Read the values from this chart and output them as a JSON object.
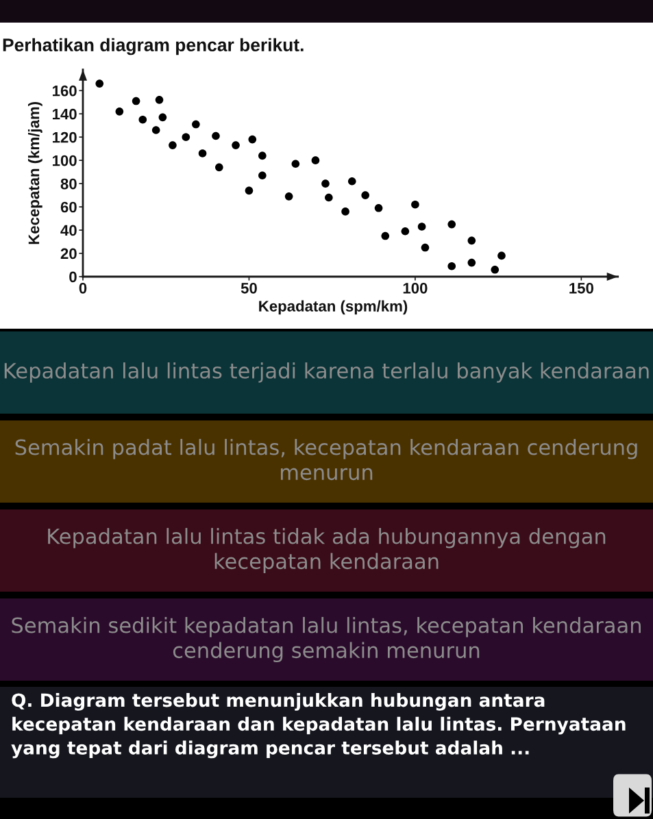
{
  "chart_data": {
    "type": "scatter",
    "title": "Perhatikan diagram pencar berikut.",
    "xlabel": "Kepadatan (spm/km)",
    "ylabel": "Kecepatan (km/jam)",
    "x": [
      5,
      11,
      16,
      18,
      23,
      22,
      24,
      27,
      31,
      34,
      36,
      40,
      41,
      46,
      51,
      50,
      54,
      54,
      64,
      70,
      62,
      73,
      74,
      81,
      85,
      79,
      89,
      100,
      91,
      97,
      102,
      103,
      111,
      117,
      111,
      117,
      124,
      126
    ],
    "values": [
      166,
      142,
      151,
      135,
      152,
      126,
      137,
      113,
      120,
      131,
      106,
      121,
      94,
      113,
      118,
      74,
      104,
      87,
      97,
      100,
      69,
      80,
      68,
      82,
      70,
      56,
      59,
      62,
      35,
      39,
      43,
      25,
      45,
      31,
      9,
      12,
      6,
      18
    ],
    "color": "#000000",
    "marker": "circle",
    "xlim": [
      0,
      161
    ],
    "ylim": [
      0,
      178
    ],
    "xticks": [
      0,
      50,
      100,
      150
    ],
    "yticks": [
      0,
      20,
      40,
      60,
      80,
      100,
      120,
      140,
      160
    ],
    "annotations": [
      "Kepadatan lalu lintas terjadi karena terlalu banyak kendaraan",
      "Semakin padat lalu lintas, kecepatan kendaraan cenderung menurun",
      "Kepadatan lalu lintas tidak ada hubungannya dengan kecepatan kendaraan",
      "Semakin sedikit kepadatan lalu lintas, kecepatan kendaraan cenderung semakin menurun",
      "Q. Diagram tersebut menunjukkan hubungan antara kecepatan kendaraan dan kepadatan lalu lintas. Pernyataan yang tepat dari diagram pencar tersebut adalah ..."
    ]
  }
}
